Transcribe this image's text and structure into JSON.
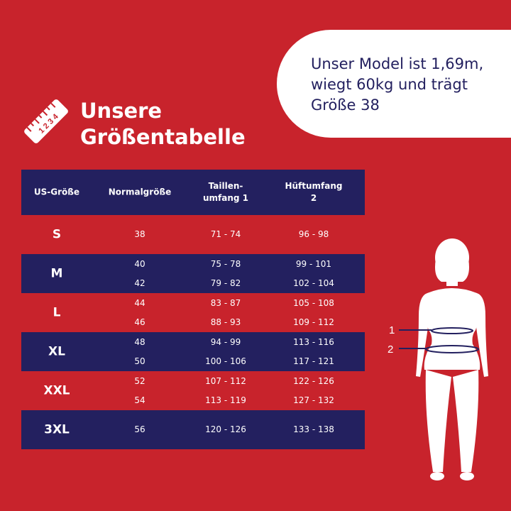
{
  "model_info": {
    "line1": "Unser Model ist 1,69m,",
    "line2": "wiegt 60kg und trägt",
    "line3": "Größe 38"
  },
  "title": {
    "line1": "Unsere",
    "line2": "Größentabelle"
  },
  "ruler_label": "1 2 3 4",
  "headers": {
    "us_size": "US-Größe",
    "normal_size": "Normalgröße",
    "waist_line1": "Taillen-",
    "waist_line2": "umfang 1",
    "hip_line1": "Hüftumfang",
    "hip_line2": "2"
  },
  "rows": [
    {
      "size": "S",
      "normal": [
        "38"
      ],
      "waist": [
        "71 - 74"
      ],
      "hip": [
        "96 - 98"
      ]
    },
    {
      "size": "M",
      "normal": [
        "40",
        "42"
      ],
      "waist": [
        "75 - 78",
        "79 - 82"
      ],
      "hip": [
        "99 - 101",
        "102 - 104"
      ]
    },
    {
      "size": "L",
      "normal": [
        "44",
        "46"
      ],
      "waist": [
        "83 - 87",
        "88 - 93"
      ],
      "hip": [
        "105 - 108",
        "109 - 112"
      ]
    },
    {
      "size": "XL",
      "normal": [
        "48",
        "50"
      ],
      "waist": [
        "94 - 99",
        "100 - 106"
      ],
      "hip": [
        "113 - 116",
        "117 - 121"
      ]
    },
    {
      "size": "XXL",
      "normal": [
        "52",
        "54"
      ],
      "waist": [
        "107 - 112",
        "113 - 119"
      ],
      "hip": [
        "122 - 126",
        "127 - 132"
      ]
    },
    {
      "size": "3XL",
      "normal": [
        "56"
      ],
      "waist": [
        "120 - 126"
      ],
      "hip": [
        "133 - 138"
      ]
    }
  ],
  "figure_labels": {
    "label1": "1",
    "label2": "2"
  },
  "colors": {
    "background": "#c8232c",
    "navy": "#23205f",
    "white": "#ffffff"
  }
}
